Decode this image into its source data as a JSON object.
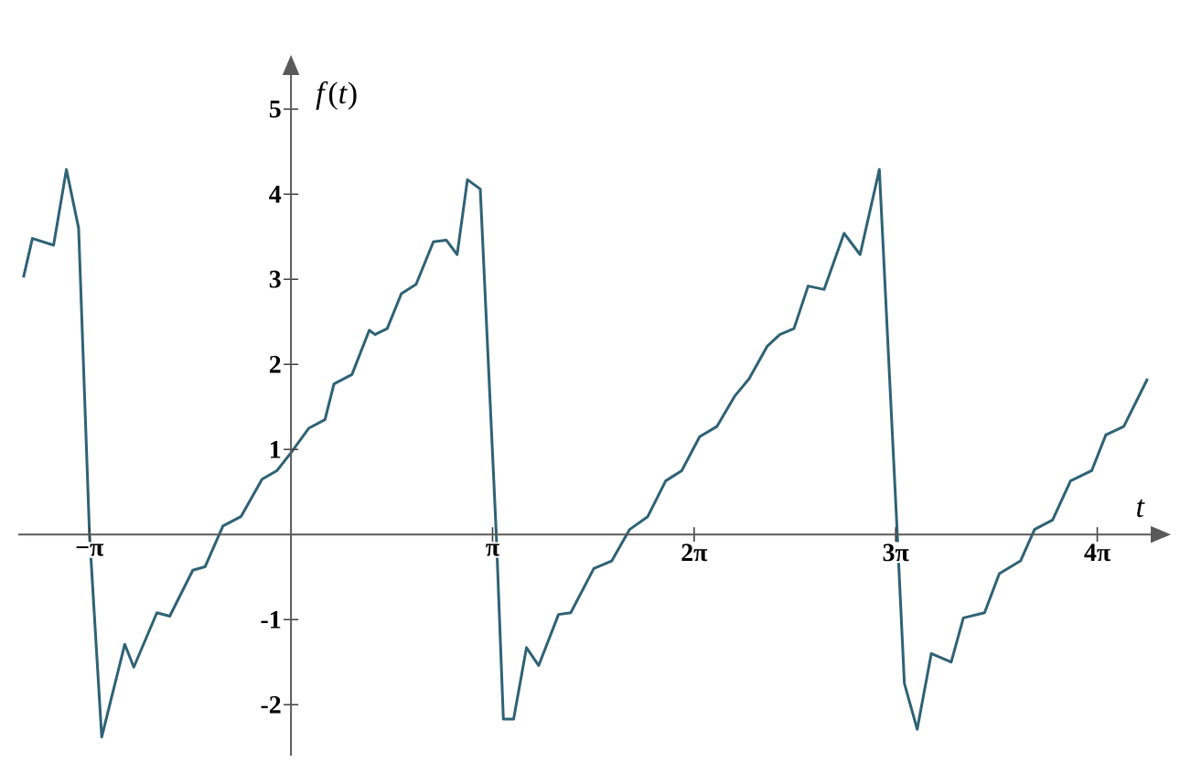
{
  "chart_data": {
    "type": "line",
    "xlabel": "t",
    "ylabel": "*f*(*t*)",
    "x": [
      -4.17,
      -4.03,
      -3.7,
      -3.5,
      -3.31,
      -3.14,
      -2.95,
      -2.59,
      -2.45,
      -2.09,
      -1.89,
      -1.53,
      -1.34,
      -1.06,
      -0.78,
      -0.45,
      -0.22,
      0,
      0.28,
      0.53,
      0.67,
      0.95,
      1.22,
      1.31,
      1.5,
      1.72,
      1.95,
      2.22,
      2.42,
      2.59,
      2.75,
      2.95,
      3.2,
      3.31,
      3.47,
      3.67,
      3.86,
      4.17,
      4.36,
      4.72,
      5.0,
      5.28,
      5.56,
      5.84,
      6.09,
      6.37,
      6.64,
      6.92,
      7.14,
      7.42,
      7.62,
      7.84,
      8.06,
      8.31,
      8.62,
      8.87,
      9.17,
      9.45,
      9.56,
      9.76,
      9.98,
      10.29,
      10.48,
      10.81,
      11.04,
      11.37,
      11.59,
      11.87,
      12.15,
      12.48,
      12.7,
      12.98,
      13.35
    ],
    "series": [
      {
        "color": "#2f6275",
        "values": [
          3.02,
          3.48,
          3.4,
          4.29,
          3.6,
          0,
          -2.38,
          -1.29,
          -1.56,
          -0.92,
          -0.96,
          -0.42,
          -0.38,
          0.1,
          0.21,
          0.65,
          0.75,
          0.96,
          1.25,
          1.35,
          1.77,
          1.88,
          2.4,
          2.35,
          2.42,
          2.83,
          2.94,
          3.44,
          3.46,
          3.29,
          4.17,
          4.06,
          0,
          -2.17,
          -2.17,
          -1.33,
          -1.54,
          -0.94,
          -0.92,
          -0.4,
          -0.31,
          0.06,
          0.21,
          0.63,
          0.75,
          1.15,
          1.27,
          1.63,
          1.83,
          2.21,
          2.35,
          2.42,
          2.92,
          2.88,
          3.54,
          3.29,
          4.29,
          0,
          -1.75,
          -2.29,
          -1.4,
          -1.5,
          -0.98,
          -0.92,
          -0.46,
          -0.31,
          0.06,
          0.17,
          0.63,
          0.75,
          1.17,
          1.27,
          1.83
        ]
      }
    ],
    "xlim": [
      -4.25,
      13.4
    ],
    "ylim": [
      -2.6,
      5.4
    ],
    "xticks": [
      {
        "value": -3.1416,
        "label": "−π"
      },
      {
        "value": 3.1416,
        "label": "π"
      },
      {
        "value": 6.2832,
        "label": "2π"
      },
      {
        "value": 9.4248,
        "label": "3π"
      },
      {
        "value": 12.5664,
        "label": "4π"
      }
    ],
    "yticks": [
      -2,
      -1,
      1,
      2,
      3,
      4,
      5
    ]
  }
}
